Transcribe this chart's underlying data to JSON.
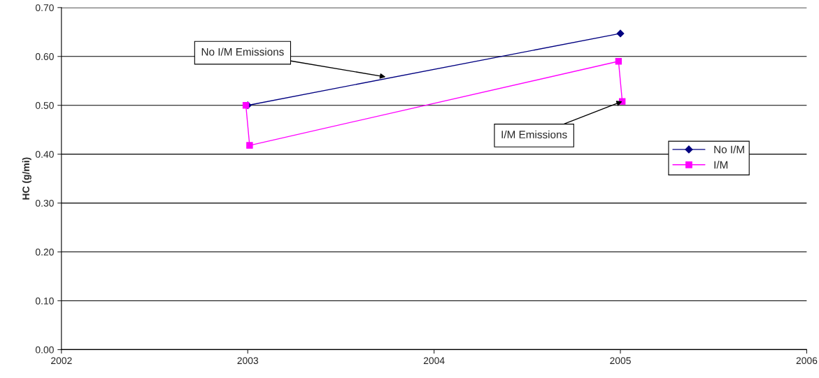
{
  "chart_data": {
    "type": "line",
    "ylabel": "HC (g/mi)",
    "xlim": [
      2002,
      2006
    ],
    "xticks": [
      2002,
      2003,
      2004,
      2005,
      2006
    ],
    "ylim": [
      0,
      0.7
    ],
    "yticks": [
      {
        "value": 0,
        "label": "0.00"
      },
      {
        "value": 0.1,
        "label": "0.10"
      },
      {
        "value": 0.2,
        "label": "0.20"
      },
      {
        "value": 0.3,
        "label": "0.30"
      },
      {
        "value": 0.4,
        "label": "0.40"
      },
      {
        "value": 0.5,
        "label": "0.50"
      },
      {
        "value": 0.6,
        "label": "0.60"
      },
      {
        "value": 0.7,
        "label": "0.70"
      }
    ],
    "grid": "y",
    "legend": "right",
    "series": [
      {
        "name": "No I/M",
        "color": "#000080",
        "marker": "diamond",
        "x": [
          2003,
          2005
        ],
        "values": [
          0.5,
          0.647
        ]
      },
      {
        "name": "I/M",
        "color": "#ff00ff",
        "marker": "square",
        "x": [
          2002.99,
          2003.01,
          2004.99,
          2005.01
        ],
        "values": [
          0.5,
          0.418,
          0.59,
          0.508
        ]
      }
    ],
    "annotations": [
      {
        "text": "No I/M Emissions",
        "x": 2003.74,
        "y": 0.558
      },
      {
        "text": "I/M Emissions",
        "x": 2005.01,
        "y": 0.508
      }
    ]
  }
}
